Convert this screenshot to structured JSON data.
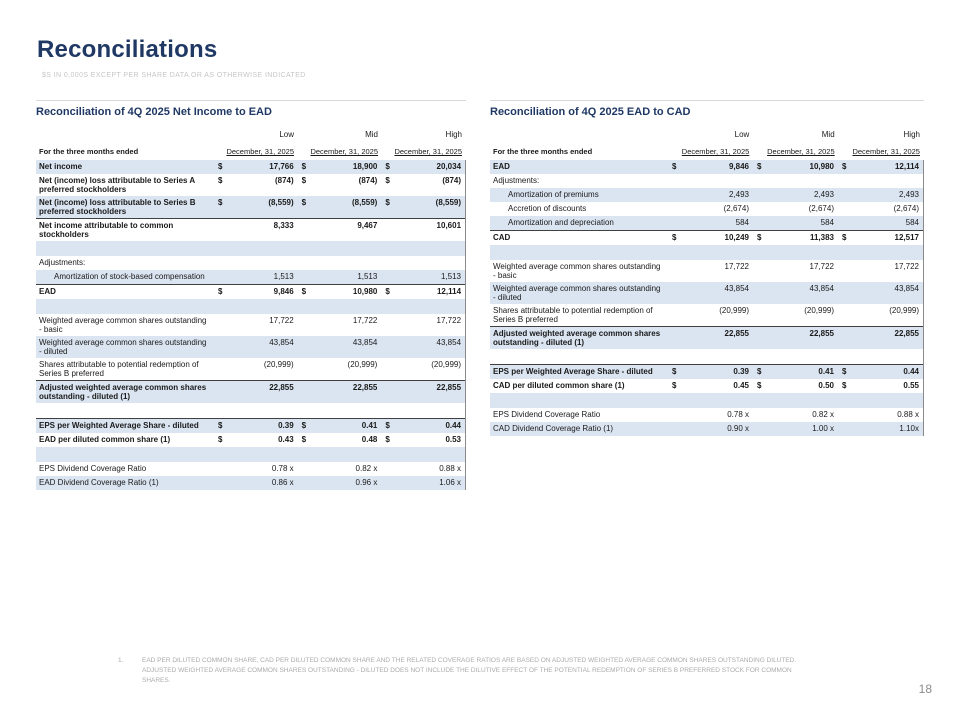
{
  "slide": {
    "title": "Reconciliations",
    "subtitle": "$s IN 0,000s EXCEPT PER SHARE DATA OR AS OTHERWISE INDICATED",
    "page_number": "18",
    "footnote_marker": "1.",
    "footnote_text": "EAD PER DILUTED COMMON SHARE, CAD PER DILUTED COMMON SHARE AND THE RELATED COVERAGE RATIOS ARE BASED ON ADJUSTED WEIGHTED AVERAGE COMMON SHARES OUTSTANDING DILUTED. ADJUSTED WEIGHTED AVERAGE COMMON SHARES OUTSTANDING - DILUTED DOES NOT INCLUDE THE DILUTIVE EFFECT OF THE POTENTIAL REDEMPTION OF SERIES B PREFERRED STOCK FOR COMMON SHARES."
  },
  "colors": {
    "accent_navy": "#1F3864",
    "row_shade": "#DBE5F1",
    "subtitle_gray": "#C6C6C6",
    "footnote_gray": "#ABABAB"
  },
  "tables": [
    {
      "title": "Reconciliation of 4Q 2025 Net Income to EAD",
      "label_header": "For the three months ended",
      "date_header": "December, 31, 2025",
      "scenario_headers": [
        "Low",
        "Mid",
        "High"
      ],
      "rows": [
        {
          "label": "Net income",
          "dollar": true,
          "values": [
            "17,766",
            "18,900",
            "20,034"
          ],
          "shaded": true,
          "bold": true
        },
        {
          "label": "Net (income) loss attributable to Series A preferred stockholders",
          "dollar": true,
          "values": [
            "(874)",
            "(874)",
            "(874)"
          ],
          "shaded": false,
          "bold": true
        },
        {
          "label": "Net (income) loss attributable to Series B preferred stockholders",
          "dollar": true,
          "values": [
            "(8,559)",
            "(8,559)",
            "(8,559)"
          ],
          "shaded": true,
          "bold": true
        },
        {
          "label": "Net income attributable to common stockholders",
          "values": [
            "8,333",
            "9,467",
            "10,601"
          ],
          "shaded": false,
          "bold": true,
          "border_top": true
        },
        {
          "blank": true,
          "shaded": true
        },
        {
          "label": "Adjustments:",
          "values": [
            "",
            "",
            ""
          ],
          "shaded": false
        },
        {
          "label": "Amortization of stock-based compensation",
          "values": [
            "1,513",
            "1,513",
            "1,513"
          ],
          "shaded": true,
          "indent": true
        },
        {
          "label": "EAD",
          "dollar": true,
          "values": [
            "9,846",
            "10,980",
            "12,114"
          ],
          "shaded": false,
          "bold": true,
          "border_top": true
        },
        {
          "blank": true,
          "shaded": true
        },
        {
          "label": "Weighted average common shares outstanding - basic",
          "values": [
            "17,722",
            "17,722",
            "17,722"
          ],
          "shaded": false
        },
        {
          "label": "Weighted average common shares outstanding - diluted",
          "values": [
            "43,854",
            "43,854",
            "43,854"
          ],
          "shaded": true
        },
        {
          "label": "Shares attributable to potential redemption of Series B preferred",
          "values": [
            "(20,999)",
            "(20,999)",
            "(20,999)"
          ],
          "shaded": false
        },
        {
          "label": "Adjusted weighted average common shares outstanding - diluted (1)",
          "values": [
            "22,855",
            "22,855",
            "22,855"
          ],
          "shaded": true,
          "bold": true,
          "border_top": true
        },
        {
          "blank": true,
          "shaded": false
        },
        {
          "label": "EPS per Weighted Average Share - diluted",
          "dollar": true,
          "values": [
            "0.39",
            "0.41",
            "0.44"
          ],
          "shaded": true,
          "bold": true,
          "border_top": true
        },
        {
          "label": "EAD per diluted common share (1)",
          "dollar": true,
          "values": [
            "0.43",
            "0.48",
            "0.53"
          ],
          "shaded": false,
          "bold": true
        },
        {
          "blank": true,
          "shaded": true
        },
        {
          "label": "EPS Dividend Coverage Ratio",
          "values": [
            "0.78 x",
            "0.82 x",
            "0.88 x"
          ],
          "shaded": false
        },
        {
          "label": "EAD Dividend Coverage Ratio (1)",
          "values": [
            "0.86 x",
            "0.96 x",
            "1.06 x"
          ],
          "shaded": true
        }
      ]
    },
    {
      "title": "Reconciliation of 4Q 2025 EAD to CAD",
      "label_header": "For the three months ended",
      "date_header": "December, 31, 2025",
      "scenario_headers": [
        "Low",
        "Mid",
        "High"
      ],
      "rows": [
        {
          "label": "EAD",
          "dollar": true,
          "values": [
            "9,846",
            "10,980",
            "12,114"
          ],
          "shaded": true,
          "bold": true
        },
        {
          "label": "Adjustments:",
          "values": [
            "",
            "",
            ""
          ],
          "shaded": false
        },
        {
          "label": "Amortization of premiums",
          "values": [
            "2,493",
            "2,493",
            "2,493"
          ],
          "shaded": true,
          "indent": true
        },
        {
          "label": "Accretion of discounts",
          "values": [
            "(2,674)",
            "(2,674)",
            "(2,674)"
          ],
          "shaded": false,
          "indent": true
        },
        {
          "label": "Amortization and depreciation",
          "values": [
            "584",
            "584",
            "584"
          ],
          "shaded": true,
          "indent": true
        },
        {
          "label": "CAD",
          "dollar": true,
          "values": [
            "10,249",
            "11,383",
            "12,517"
          ],
          "shaded": false,
          "bold": true,
          "border_top": true
        },
        {
          "blank": true,
          "shaded": true
        },
        {
          "label": "Weighted average common shares outstanding - basic",
          "values": [
            "17,722",
            "17,722",
            "17,722"
          ],
          "shaded": false
        },
        {
          "label": "Weighted average common shares outstanding - diluted",
          "values": [
            "43,854",
            "43,854",
            "43,854"
          ],
          "shaded": true
        },
        {
          "label": "Shares attributable to potential redemption of Series B preferred",
          "values": [
            "(20,999)",
            "(20,999)",
            "(20,999)"
          ],
          "shaded": false
        },
        {
          "label": "Adjusted weighted average common shares outstanding - diluted (1)",
          "values": [
            "22,855",
            "22,855",
            "22,855"
          ],
          "shaded": true,
          "bold": true,
          "border_top": true
        },
        {
          "blank": true,
          "shaded": false
        },
        {
          "label": "EPS per Weighted Average Share - diluted",
          "dollar": true,
          "values": [
            "0.39",
            "0.41",
            "0.44"
          ],
          "shaded": true,
          "bold": true,
          "border_top": true
        },
        {
          "label": "CAD per diluted common share (1)",
          "dollar": true,
          "values": [
            "0.45",
            "0.50",
            "0.55"
          ],
          "shaded": false,
          "bold": true
        },
        {
          "blank": true,
          "shaded": true
        },
        {
          "label": "EPS Dividend Coverage Ratio",
          "values": [
            "0.78 x",
            "0.82 x",
            "0.88 x"
          ],
          "shaded": false
        },
        {
          "label": "CAD Dividend Coverage Ratio (1)",
          "values": [
            "0.90 x",
            "1.00 x",
            "1.10x"
          ],
          "shaded": true
        }
      ]
    }
  ]
}
